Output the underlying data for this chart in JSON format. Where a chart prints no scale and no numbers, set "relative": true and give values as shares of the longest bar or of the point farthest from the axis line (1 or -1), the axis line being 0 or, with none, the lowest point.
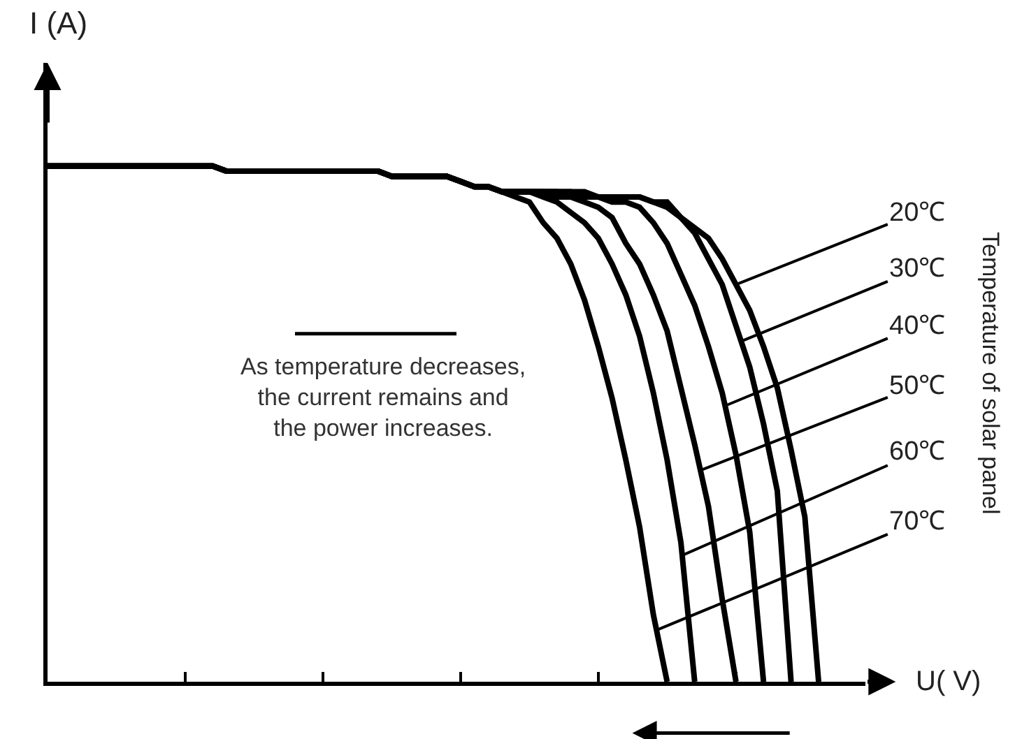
{
  "chart_data": {
    "type": "line",
    "relative": true,
    "xlabel": "U( V)",
    "ylabel": "I (A)",
    "legend_title": "Temperature of solar panel",
    "categories": [
      null,
      null,
      null,
      null,
      null,
      null,
      null,
      null,
      null,
      null,
      null,
      null,
      null,
      null,
      null,
      null,
      null,
      null,
      null,
      null,
      null,
      null,
      null,
      null,
      null,
      null,
      null,
      null,
      null,
      null,
      null,
      null,
      null,
      null,
      null,
      null,
      null,
      null,
      null,
      null,
      null,
      null,
      null,
      null,
      null,
      null,
      null,
      null,
      null,
      null,
      null,
      null,
      null,
      null,
      null,
      null,
      null,
      null,
      null,
      null
    ],
    "legend": false,
    "annotations": [
      "As temperature decreases,\nthe current remains and\nthe power increases."
    ],
    "series": [
      {
        "name": "20℃",
        "color": "#000000",
        "values": [
          1.0,
          1.0,
          1.0,
          1.0,
          1.0,
          1.0,
          1.0,
          1.0,
          1.0,
          1.0,
          1.0,
          1.0,
          1.0,
          0.99,
          0.99,
          0.99,
          0.99,
          0.99,
          0.99,
          0.99,
          0.99,
          0.99,
          0.99,
          0.99,
          0.99,
          0.98,
          0.98,
          0.98,
          0.98,
          0.98,
          0.97,
          0.96,
          0.96,
          0.95,
          0.95,
          0.95,
          0.95,
          0.95,
          0.95,
          0.95,
          0.94,
          0.94,
          0.94,
          0.94,
          0.93,
          0.92,
          0.9,
          0.88,
          0.86,
          0.82,
          0.77,
          0.72,
          0.65,
          0.57,
          0.45,
          0.32,
          0,
          null,
          null,
          null
        ]
      },
      {
        "name": "30℃",
        "color": "#000000",
        "values": [
          1.0,
          1.0,
          1.0,
          1.0,
          1.0,
          1.0,
          1.0,
          1.0,
          1.0,
          1.0,
          1.0,
          1.0,
          1.0,
          0.99,
          0.99,
          0.99,
          0.99,
          0.99,
          0.99,
          0.99,
          0.99,
          0.99,
          0.99,
          0.99,
          0.99,
          0.98,
          0.98,
          0.98,
          0.98,
          0.98,
          0.97,
          0.96,
          0.96,
          0.95,
          0.95,
          0.95,
          0.95,
          0.95,
          0.95,
          0.94,
          0.94,
          0.94,
          0.94,
          0.94,
          0.93,
          0.93,
          0.9,
          0.87,
          0.82,
          0.77,
          0.69,
          0.61,
          0.5,
          0.37,
          0,
          null,
          null,
          null,
          null,
          null
        ]
      },
      {
        "name": "40℃",
        "color": "#000000",
        "values": [
          1.0,
          1.0,
          1.0,
          1.0,
          1.0,
          1.0,
          1.0,
          1.0,
          1.0,
          1.0,
          1.0,
          1.0,
          1.0,
          0.99,
          0.99,
          0.99,
          0.99,
          0.99,
          0.99,
          0.99,
          0.99,
          0.99,
          0.99,
          0.99,
          0.99,
          0.98,
          0.98,
          0.98,
          0.98,
          0.98,
          0.97,
          0.96,
          0.96,
          0.95,
          0.95,
          0.95,
          0.95,
          0.95,
          0.94,
          0.94,
          0.94,
          0.93,
          0.93,
          0.92,
          0.89,
          0.85,
          0.79,
          0.73,
          0.65,
          0.56,
          0.44,
          0.29,
          0,
          null,
          null,
          null,
          null,
          null,
          null,
          null
        ]
      },
      {
        "name": "50℃",
        "color": "#000000",
        "values": [
          1.0,
          1.0,
          1.0,
          1.0,
          1.0,
          1.0,
          1.0,
          1.0,
          1.0,
          1.0,
          1.0,
          1.0,
          1.0,
          0.99,
          0.99,
          0.99,
          0.99,
          0.99,
          0.99,
          0.99,
          0.99,
          0.99,
          0.99,
          0.99,
          0.99,
          0.98,
          0.98,
          0.98,
          0.98,
          0.98,
          0.97,
          0.96,
          0.96,
          0.95,
          0.95,
          0.95,
          0.95,
          0.94,
          0.94,
          0.93,
          0.92,
          0.9,
          0.85,
          0.81,
          0.75,
          0.68,
          0.57,
          0.46,
          0.34,
          0.16,
          0,
          null,
          null,
          null,
          null,
          null,
          null,
          null,
          null,
          null
        ]
      },
      {
        "name": "60℃",
        "color": "#000000",
        "values": [
          1.0,
          1.0,
          1.0,
          1.0,
          1.0,
          1.0,
          1.0,
          1.0,
          1.0,
          1.0,
          1.0,
          1.0,
          1.0,
          0.99,
          0.99,
          0.99,
          0.99,
          0.99,
          0.99,
          0.99,
          0.99,
          0.99,
          0.99,
          0.99,
          0.99,
          0.98,
          0.98,
          0.98,
          0.98,
          0.98,
          0.97,
          0.96,
          0.96,
          0.95,
          0.95,
          0.95,
          0.94,
          0.93,
          0.91,
          0.89,
          0.86,
          0.81,
          0.75,
          0.67,
          0.56,
          0.43,
          0.27,
          0,
          null,
          null,
          null,
          null,
          null,
          null,
          null,
          null,
          null,
          null,
          null,
          null
        ]
      },
      {
        "name": "70℃",
        "color": "#000000",
        "values": [
          1.0,
          1.0,
          1.0,
          1.0,
          1.0,
          1.0,
          1.0,
          1.0,
          1.0,
          1.0,
          1.0,
          1.0,
          1.0,
          0.99,
          0.99,
          0.99,
          0.99,
          0.99,
          0.99,
          0.99,
          0.99,
          0.99,
          0.99,
          0.99,
          0.99,
          0.98,
          0.98,
          0.98,
          0.98,
          0.98,
          0.97,
          0.96,
          0.96,
          0.95,
          0.94,
          0.93,
          0.89,
          0.86,
          0.81,
          0.74,
          0.65,
          0.55,
          0.43,
          0.3,
          0.13,
          0,
          null,
          null,
          null,
          null,
          null,
          null,
          null,
          null,
          null,
          null,
          null,
          null,
          null,
          null
        ]
      }
    ]
  }
}
